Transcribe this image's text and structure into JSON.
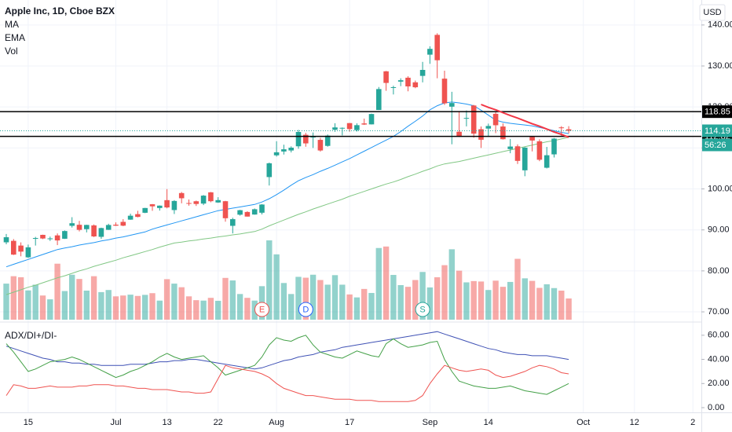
{
  "chart_data": [
    {
      "type": "candlestick",
      "title": "Apple Inc, 1D, Cboe BZX",
      "currency": "USD",
      "volume_label": "Vol",
      "categories": [
        null,
        null,
        null,
        "15",
        null,
        null,
        null,
        null,
        null,
        null,
        null,
        null,
        null,
        null,
        null,
        "Jul",
        null,
        null,
        null,
        null,
        null,
        null,
        "13",
        null,
        null,
        null,
        null,
        null,
        null,
        "22",
        null,
        null,
        null,
        null,
        null,
        null,
        null,
        "Aug",
        null,
        null,
        null,
        null,
        null,
        null,
        null,
        null,
        null,
        "17",
        null,
        null,
        null,
        null,
        null,
        null,
        null,
        null,
        null,
        null,
        "Sep",
        null,
        null,
        null,
        null,
        null,
        null,
        null,
        "14",
        null,
        null,
        null,
        null,
        null,
        null,
        null,
        null,
        null,
        null,
        null
      ],
      "future_categories": [
        null,
        "Oct",
        null,
        null,
        null,
        null,
        null,
        null,
        "12",
        null,
        null,
        null,
        null,
        null,
        null,
        null,
        "2"
      ],
      "open": [
        86.97,
        87.33,
        86.18,
        83.31,
        87.87,
        88.79,
        87.85,
        88.66,
        87.84,
        91.0,
        91.25,
        90.18,
        91.1,
        88.31,
        90.02,
        91.28,
        91.96,
        92.5,
        93.85,
        94.18,
        96.26,
        95.34,
        97.26,
        94.84,
        98.99,
        96.56,
        96.99,
        96.42,
        99.17,
        96.69,
        97.0,
        90.99,
        93.71,
        94.37,
        93.75,
        94.19,
        102.89,
        108.2,
        109.13,
        109.38,
        110.4,
        113.21,
        112.6,
        111.97,
        110.5,
        114.43,
        114.83,
        116.06,
        114.35,
        115.98,
        115.75,
        119.26,
        128.7,
        124.7,
        126.18,
        127.14,
        126.01,
        127.58,
        132.76,
        137.59,
        126.91,
        120.07,
        113.95,
        117.26,
        120.36,
        114.57,
        114.72,
        118.33,
        115.23,
        109.72,
        110.4,
        104.54,
        112.68,
        111.62,
        105.17,
        108.43,
        115.01,
        114.55
      ],
      "high": [
        89.0,
        87.76,
        86.95,
        86.42,
        88.3,
        88.85,
        88.36,
        89.14,
        89.87,
        93.1,
        92.2,
        91.25,
        91.33,
        90.54,
        91.5,
        91.84,
        92.62,
        93.95,
        94.66,
        95.38,
        96.32,
        95.98,
        99.96,
        97.26,
        99.25,
        97.41,
        97.15,
        98.5,
        99.25,
        97.98,
        97.08,
        92.97,
        94.9,
        94.55,
        95.23,
        96.3,
        106.42,
        111.64,
        110.79,
        110.39,
        114.41,
        113.68,
        113.78,
        112.48,
        113.28,
        116.04,
        115.0,
        116.09,
        116.0,
        117.16,
        118.39,
        124.87,
        128.79,
        125.18,
        126.99,
        127.49,
        126.44,
        131.0,
        134.8,
        137.98,
        128.84,
        123.7,
        118.99,
        119.14,
        120.5,
        115.23,
        115.93,
        118.83,
        116.0,
        112.2,
        110.88,
        110.19,
        112.86,
        112.11,
        110.25,
        112.44,
        115.32,
        115.31
      ],
      "low": [
        86.5,
        83.87,
        83.56,
        83.15,
        86.18,
        87.77,
        87.31,
        86.29,
        87.79,
        90.57,
        89.63,
        89.39,
        88.25,
        87.82,
        90.0,
        90.98,
        90.91,
        92.47,
        93.06,
        94.09,
        94.67,
        94.71,
        95.26,
        93.88,
        96.49,
        95.91,
        95.84,
        96.06,
        96.74,
        96.6,
        92.01,
        89.14,
        93.48,
        93.25,
        93.71,
        93.77,
        100.83,
        107.89,
        108.39,
        108.9,
        109.8,
        110.29,
        110.0,
        109.11,
        110.3,
        113.93,
        113.05,
        113.96,
        114.01,
        115.61,
        115.73,
        119.25,
        123.94,
        123.05,
        125.08,
        123.83,
        124.58,
        126.0,
        130.53,
        127.0,
        120.5,
        110.89,
        112.68,
        115.26,
        112.5,
        110.0,
        112.8,
        113.61,
        112.04,
        108.71,
        106.09,
        103.1,
        109.16,
        106.77,
        105.0,
        107.67,
        112.78,
        113.57
      ],
      "close": [
        88.21,
        83.97,
        84.7,
        85.75,
        88.02,
        87.9,
        87.93,
        87.43,
        89.72,
        91.63,
        90.01,
        91.21,
        88.41,
        90.45,
        91.2,
        91.03,
        91.03,
        93.46,
        93.17,
        95.34,
        95.75,
        95.92,
        95.48,
        97.06,
        97.72,
        96.52,
        96.33,
        98.36,
        97.0,
        97.27,
        92.85,
        92.62,
        94.81,
        93.25,
        95.04,
        96.19,
        106.26,
        108.94,
        109.67,
        110.06,
        113.9,
        111.11,
        112.73,
        109.38,
        113.01,
        115.01,
        114.91,
        114.61,
        115.56,
        115.71,
        118.28,
        124.37,
        125.86,
        124.83,
        126.52,
        125.01,
        124.81,
        129.04,
        134.18,
        131.4,
        120.88,
        120.96,
        112.82,
        117.32,
        113.49,
        112.0,
        115.36,
        115.54,
        112.13,
        110.34,
        106.84,
        110.08,
        111.81,
        107.12,
        108.22,
        112.28,
        114.96,
        114.19
      ],
      "volume": [
        170,
        205,
        200,
        138,
        165,
        114,
        96,
        264,
        135,
        212,
        192,
        137,
        205,
        130,
        140,
        110,
        114,
        118,
        112,
        117,
        125,
        90,
        191,
        170,
        153,
        110,
        92,
        90,
        103,
        89,
        197,
        185,
        121,
        103,
        90,
        158,
        374,
        308,
        173,
        121,
        202,
        198,
        212,
        187,
        165,
        210,
        165,
        119,
        105,
        145,
        126,
        338,
        345,
        211,
        163,
        155,
        187,
        225,
        152,
        200,
        257,
        332,
        231,
        176,
        182,
        180,
        140,
        184,
        155,
        178,
        287,
        195,
        183,
        150,
        167,
        149,
        137,
        100
      ],
      "up_color": "#26a69a",
      "down_color": "#ef5350",
      "series": [
        {
          "name": "MA",
          "color": "#2196f3",
          "values": [
            81.0,
            81.6,
            82.2,
            82.8,
            83.4,
            84.0,
            84.6,
            85.2,
            85.6,
            85.9,
            86.3,
            86.6,
            86.9,
            87.3,
            87.6,
            88.0,
            88.3,
            88.7,
            89.1,
            89.5,
            90.2,
            90.7,
            91.2,
            91.7,
            92.2,
            92.7,
            93.2,
            93.7,
            94.2,
            94.7,
            95.0,
            95.3,
            95.6,
            95.9,
            96.2,
            96.8,
            97.6,
            98.6,
            99.7,
            100.9,
            102.0,
            102.8,
            103.5,
            104.3,
            105.0,
            105.8,
            106.6,
            107.4,
            108.3,
            109.2,
            110.1,
            111.0,
            111.9,
            112.8,
            114.0,
            115.3,
            116.5,
            117.8,
            119.3,
            120.3,
            121.0,
            121.2,
            121.0,
            120.7,
            120.3,
            119.2,
            118.0,
            116.8,
            116.3,
            116.0,
            115.8,
            115.6,
            115.4,
            115.0,
            114.6,
            114.2,
            113.8,
            113.5
          ]
        },
        {
          "name": "EMA",
          "color": "#81c784",
          "values": [
            74.2,
            74.8,
            75.4,
            76.0,
            76.5,
            77.1,
            77.7,
            78.3,
            78.8,
            79.4,
            80.0,
            80.5,
            81.1,
            81.6,
            82.1,
            82.6,
            83.2,
            83.7,
            84.2,
            84.7,
            85.2,
            85.8,
            86.3,
            86.8,
            87.0,
            87.3,
            87.5,
            87.8,
            88.0,
            88.3,
            88.5,
            88.8,
            89.0,
            89.3,
            89.6,
            90.2,
            91.0,
            91.7,
            92.4,
            93.1,
            93.8,
            94.4,
            95.1,
            95.7,
            96.3,
            96.9,
            97.5,
            98.2,
            98.8,
            99.4,
            100.0,
            100.6,
            101.2,
            101.7,
            102.3,
            103.0,
            103.6,
            104.3,
            104.9,
            105.6,
            106.1,
            106.4,
            106.7,
            107.1,
            107.5,
            107.9,
            108.3,
            108.7,
            109.1,
            109.5,
            109.9,
            110.3,
            110.7,
            111.1,
            111.5,
            111.8,
            112.2,
            112.6
          ]
        }
      ],
      "trendline": [
        null,
        null,
        null,
        null,
        null,
        null,
        null,
        null,
        null,
        null,
        null,
        null,
        null,
        null,
        null,
        null,
        null,
        null,
        null,
        null,
        null,
        null,
        null,
        null,
        null,
        null,
        null,
        null,
        null,
        null,
        null,
        null,
        null,
        null,
        null,
        null,
        null,
        null,
        null,
        null,
        null,
        null,
        null,
        null,
        null,
        null,
        null,
        null,
        null,
        null,
        null,
        null,
        null,
        null,
        null,
        null,
        null,
        null,
        null,
        null,
        null,
        null,
        null,
        null,
        null,
        120.6,
        119.9,
        119.3,
        118.6,
        117.9,
        117.3,
        116.6,
        115.9,
        115.3,
        114.6,
        113.9,
        113.3,
        112.6
      ],
      "trendline_color": "#f23645",
      "events": [
        null,
        null,
        null,
        null,
        null,
        null,
        null,
        null,
        null,
        null,
        null,
        null,
        null,
        null,
        null,
        null,
        null,
        null,
        null,
        null,
        null,
        null,
        null,
        null,
        null,
        null,
        null,
        null,
        null,
        null,
        null,
        null,
        null,
        null,
        null,
        {
          "label": "E",
          "color": "#ef5350"
        },
        null,
        null,
        null,
        null,
        null,
        {
          "label": "D",
          "color": "#2962ff"
        },
        null,
        null,
        null,
        null,
        null,
        null,
        null,
        null,
        null,
        null,
        null,
        null,
        null,
        null,
        null,
        {
          "label": "S",
          "color": "#26a69a"
        },
        null,
        null,
        null,
        null,
        null,
        null,
        null,
        null,
        null,
        null,
        null,
        null,
        null,
        null,
        null,
        null,
        null,
        null,
        null,
        null
      ],
      "levels": [
        118.85,
        112.82
      ],
      "level_color": "#000000",
      "last_price": 114.19,
      "countdown": "56:26",
      "ylim": [
        67.9,
        146.1
      ],
      "yticks": [
        {
          "value": 70,
          "label": "70.00"
        },
        {
          "value": 80,
          "label": "80.00"
        },
        {
          "value": 90,
          "label": "90.00"
        },
        {
          "value": 100,
          "label": "100.00"
        },
        {
          "value": 110,
          "label": "110.00"
        },
        {
          "value": 120,
          "label": "120.00"
        },
        {
          "value": 130,
          "label": "130.00"
        },
        {
          "value": 140,
          "label": "140.00"
        }
      ],
      "grid": true
    },
    {
      "type": "line",
      "title": "ADX/DI+/DI-",
      "series": [
        {
          "color": "#3f51b5",
          "values": [
            51,
            49,
            47,
            45,
            43,
            41,
            40,
            38,
            38,
            37,
            37,
            36,
            36,
            35,
            35,
            35,
            35,
            36,
            36,
            36,
            37,
            38,
            38,
            39,
            39,
            40,
            40,
            39,
            38,
            37,
            36,
            35,
            34,
            33,
            32,
            33,
            35,
            37,
            39,
            40,
            42,
            43,
            44,
            46,
            47,
            48,
            50,
            51,
            52,
            53,
            54,
            55,
            56,
            57,
            58,
            59,
            60,
            61,
            62,
            63,
            61,
            59,
            57,
            55,
            53,
            51,
            49,
            48,
            46,
            45,
            44,
            44,
            43,
            43,
            43,
            42,
            41,
            40
          ]
        },
        {
          "color": "#43a047",
          "values": [
            53,
            46,
            38,
            30,
            32,
            35,
            38,
            39,
            40,
            42,
            40,
            37,
            34,
            31,
            28,
            25,
            27,
            30,
            32,
            35,
            38,
            42,
            45,
            42,
            40,
            41,
            42,
            43,
            38,
            33,
            27,
            29,
            31,
            33,
            35,
            42,
            52,
            58,
            56,
            55,
            58,
            60,
            52,
            46,
            44,
            42,
            41,
            44,
            47,
            45,
            43,
            42,
            53,
            57,
            53,
            50,
            51,
            52,
            54,
            55,
            40,
            30,
            22,
            20,
            18,
            17,
            16,
            16,
            17,
            18,
            16,
            14,
            13,
            12,
            11,
            14,
            17,
            20
          ]
        },
        {
          "color": "#ef5350",
          "values": [
            10,
            19,
            18,
            16,
            16,
            17,
            18,
            17,
            17,
            17,
            18,
            18,
            19,
            19,
            19,
            18,
            18,
            17,
            16,
            16,
            15,
            15,
            15,
            14,
            13,
            13,
            12,
            12,
            13,
            24,
            35,
            33,
            32,
            31,
            30,
            28,
            25,
            20,
            16,
            14,
            12,
            10,
            10,
            9,
            8,
            7,
            7,
            7,
            6,
            6,
            6,
            5,
            5,
            5,
            5,
            5,
            6,
            10,
            20,
            28,
            35,
            33,
            31,
            30,
            31,
            32,
            31,
            27,
            25,
            26,
            28,
            30,
            33,
            35,
            34,
            32,
            29,
            28
          ]
        }
      ],
      "ylim": [
        -3.9,
        70.3
      ],
      "yticks": [
        {
          "value": 0,
          "label": "0.00"
        },
        {
          "value": 20,
          "label": "20.00"
        },
        {
          "value": 40,
          "label": "40.00"
        },
        {
          "value": 60,
          "label": "60.00"
        }
      ],
      "grid": false
    }
  ]
}
